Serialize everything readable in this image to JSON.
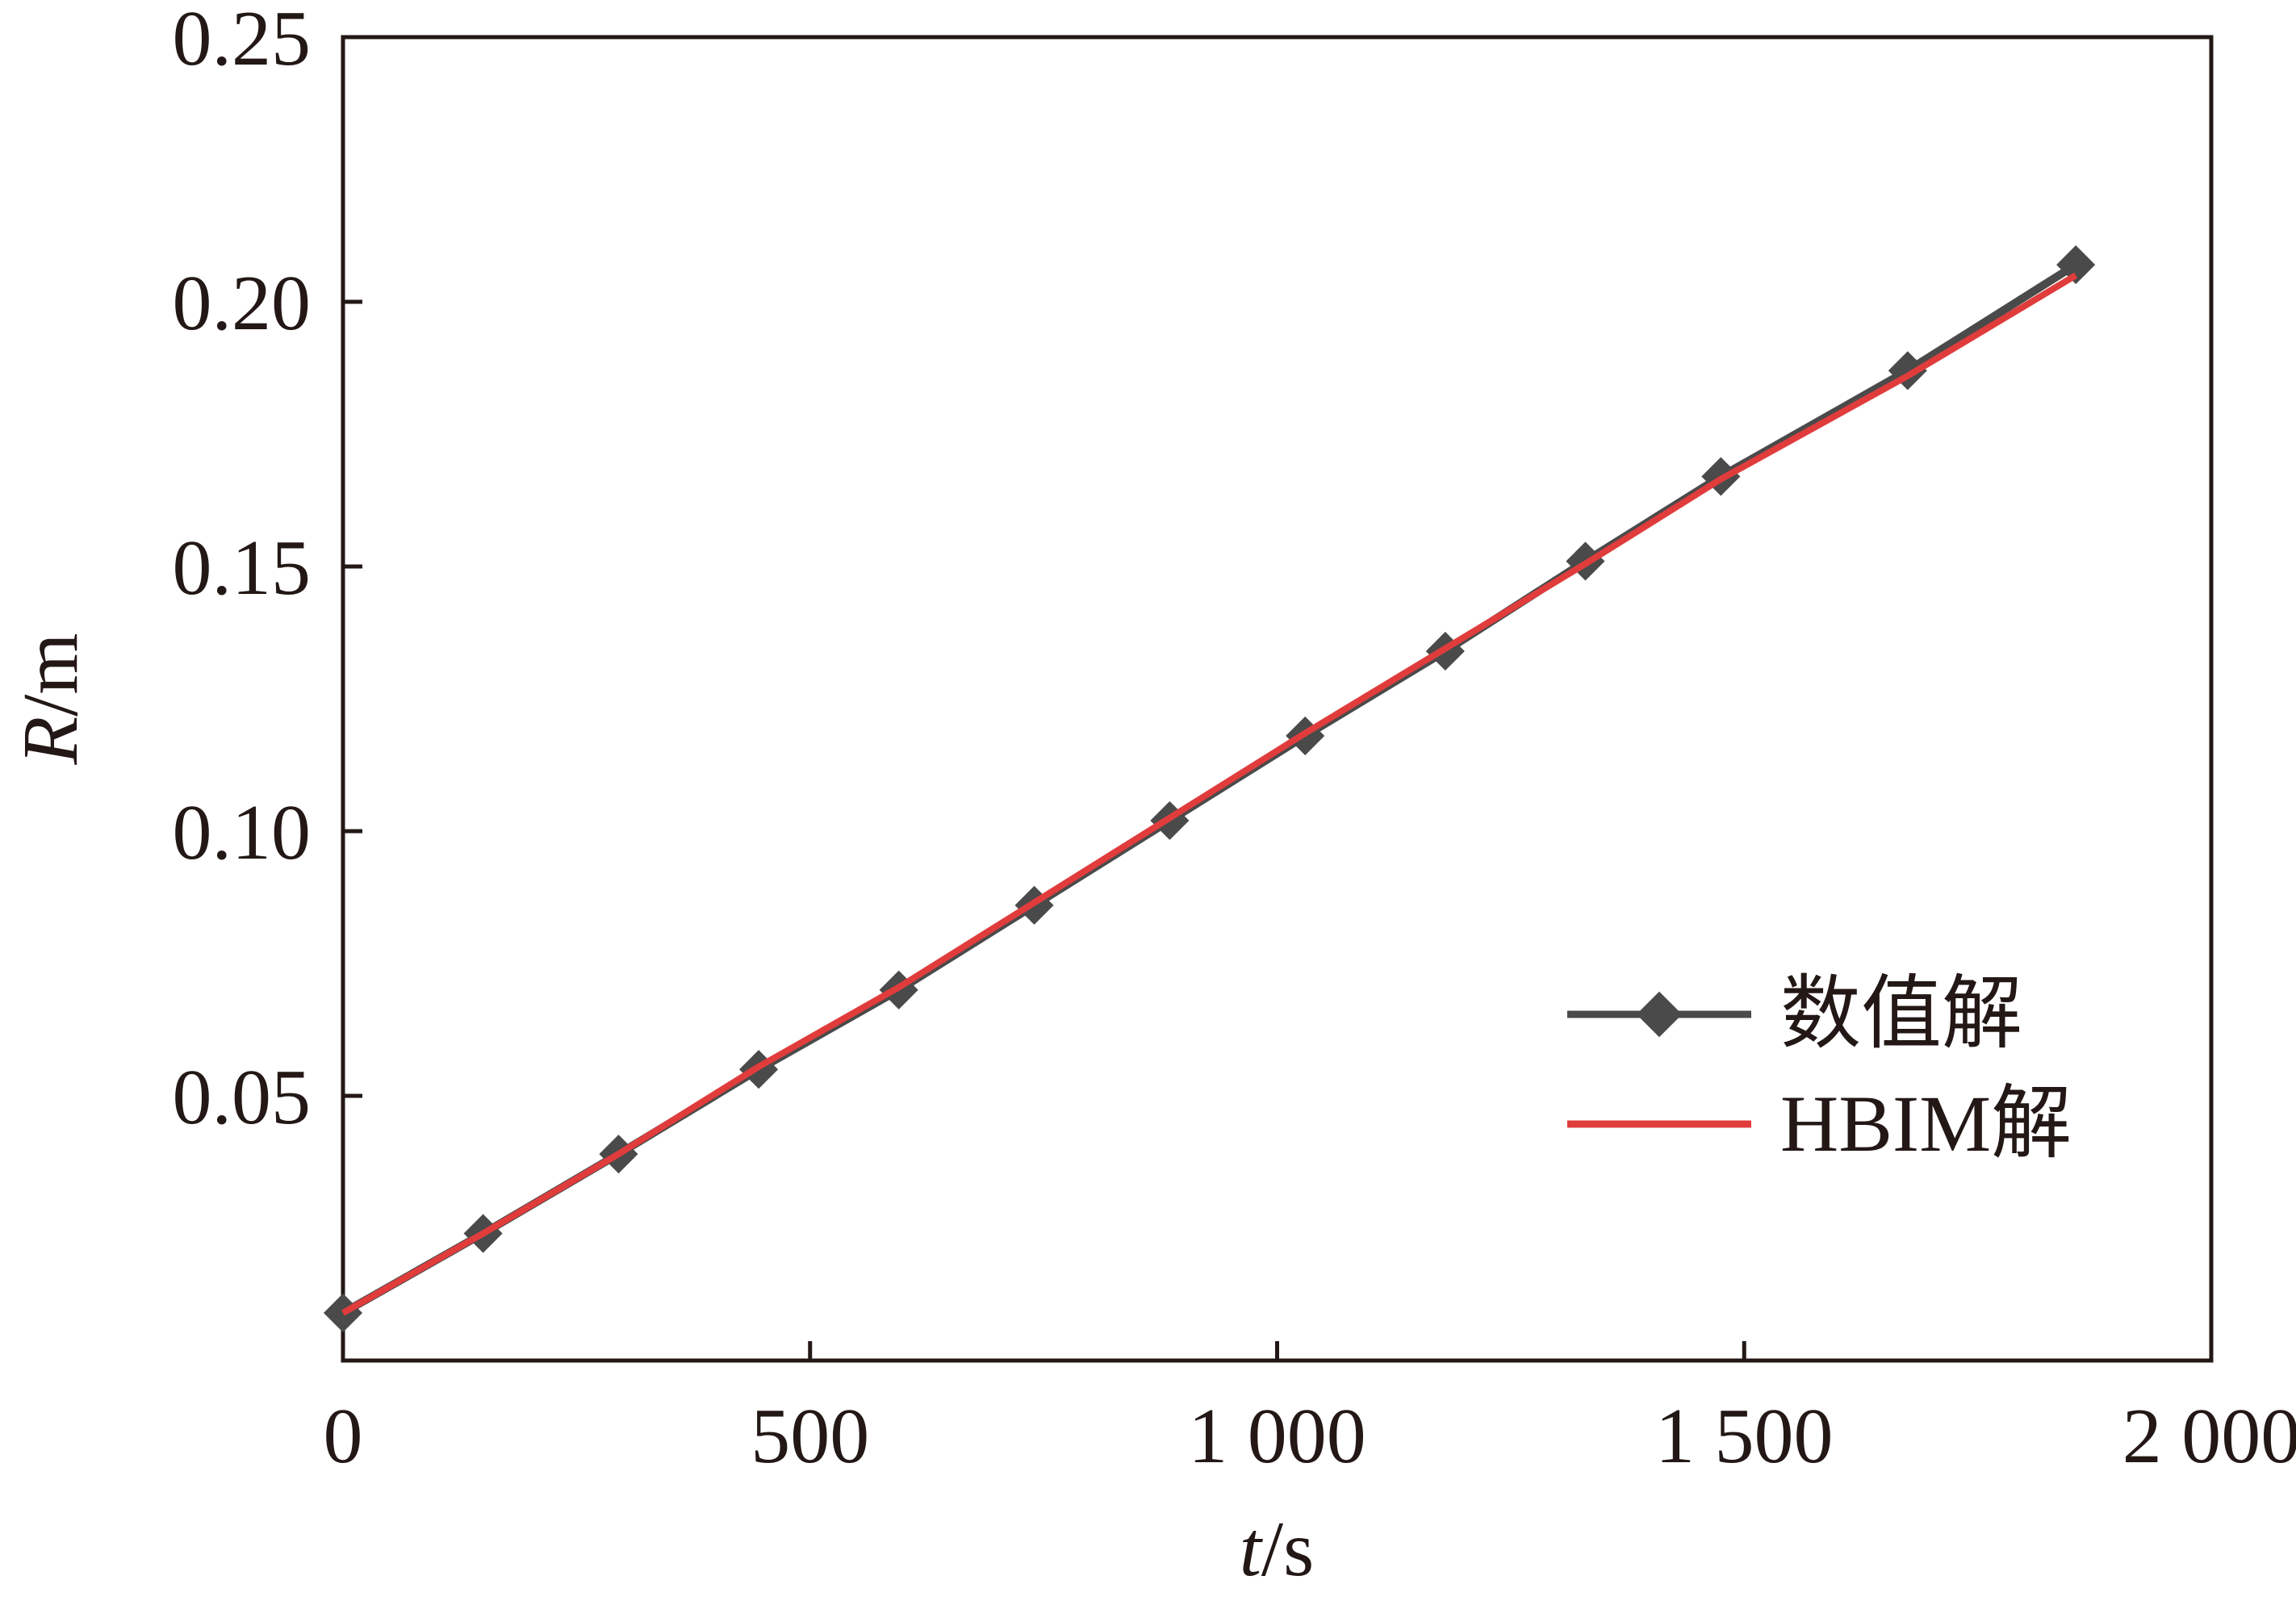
{
  "chart_data": {
    "type": "line",
    "xlabel": {
      "italic": "t",
      "rest": "/s"
    },
    "ylabel": {
      "italic": "R",
      "rest": "/m"
    },
    "xlim": [
      0,
      2000
    ],
    "ylim": [
      0,
      0.25
    ],
    "xticks": [
      0,
      500,
      1000,
      1500,
      2000
    ],
    "xtick_labels": [
      "0",
      "500",
      "1 000",
      "1 500",
      "2 000"
    ],
    "yticks": [
      0.05,
      0.1,
      0.15,
      0.2,
      0.25
    ],
    "ytick_labels": [
      "0.05",
      "0.10",
      "0.15",
      "0.20",
      "0.25"
    ],
    "grid": false,
    "legend_position": "lower-right",
    "series": [
      {
        "name": "数值解",
        "color": "#4a4a4a",
        "marker": "diamond",
        "x": [
          0,
          150,
          295,
          445,
          595,
          740,
          885,
          1030,
          1180,
          1330,
          1475,
          1675,
          1855
        ],
        "y": [
          0.009,
          0.024,
          0.039,
          0.055,
          0.07,
          0.086,
          0.102,
          0.118,
          0.134,
          0.151,
          0.167,
          0.187,
          0.207
        ]
      },
      {
        "name": "HBIM解",
        "color": "#e03c3c",
        "marker": "none",
        "x": [
          0,
          150,
          295,
          445,
          595,
          740,
          885,
          1030,
          1180,
          1330,
          1475,
          1675,
          1855
        ],
        "y": [
          0.009,
          0.024,
          0.039,
          0.0555,
          0.0705,
          0.0865,
          0.1025,
          0.1185,
          0.1345,
          0.1505,
          0.1665,
          0.186,
          0.205
        ]
      }
    ]
  }
}
